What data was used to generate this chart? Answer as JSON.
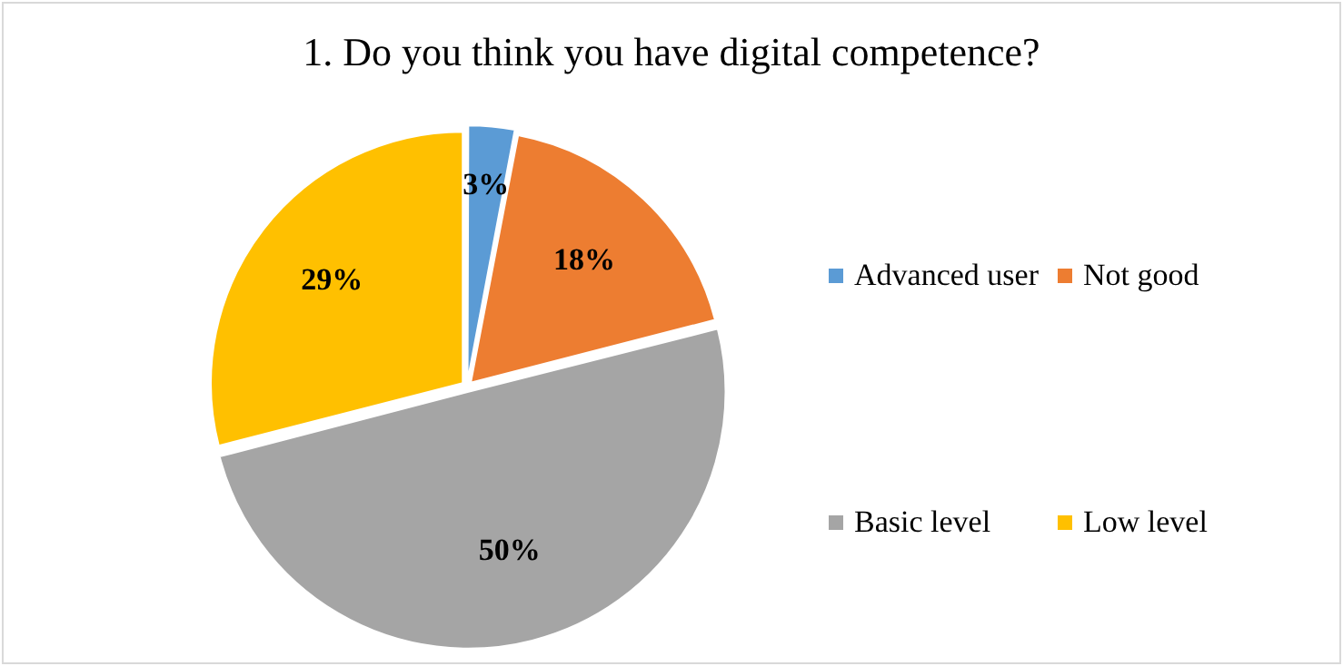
{
  "chart_data": {
    "type": "pie",
    "title": "1. Do you think you have digital competence?",
    "categories": [
      "Advanced user",
      "Not good",
      "Basic level",
      "Low level"
    ],
    "values": [
      3,
      18,
      50,
      29
    ],
    "colors": [
      "#5b9bd5",
      "#ed7d31",
      "#a5a5a5",
      "#ffc000"
    ],
    "value_labels": [
      "3%",
      "18%",
      "50%",
      "29%"
    ],
    "legend": "right"
  }
}
